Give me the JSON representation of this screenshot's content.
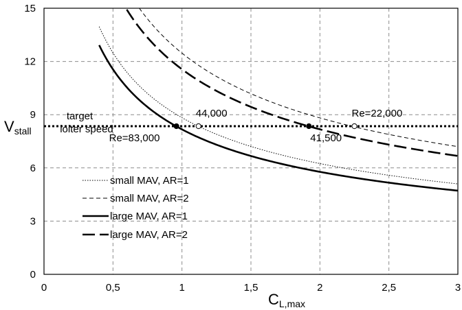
{
  "chart_data": {
    "type": "line",
    "xlabel": {
      "main": "C",
      "sub": "L,max"
    },
    "ylabel": {
      "main": "V",
      "sub": "stall"
    },
    "xlim": [
      0,
      3
    ],
    "ylim": [
      0,
      15
    ],
    "grid": true,
    "legend_position": "bottom-left",
    "x_ticks": [
      {
        "value": 0,
        "label": "0"
      },
      {
        "value": 0.5,
        "label": "0,5"
      },
      {
        "value": 1,
        "label": "1"
      },
      {
        "value": 1.5,
        "label": "1,5"
      },
      {
        "value": 2,
        "label": "2"
      },
      {
        "value": 2.5,
        "label": "2,5"
      },
      {
        "value": 3,
        "label": "3"
      }
    ],
    "y_ticks": [
      {
        "value": 0,
        "label": "0"
      },
      {
        "value": 3,
        "label": "3"
      },
      {
        "value": 6,
        "label": "6"
      },
      {
        "value": 9,
        "label": "9"
      },
      {
        "value": 12,
        "label": "12"
      },
      {
        "value": 15,
        "label": "15"
      }
    ],
    "series": [
      {
        "name": "small MAV, AR=1",
        "style": "dotted",
        "color": "#000000",
        "k": 8.83,
        "x_start": 0.4,
        "x_end": 3
      },
      {
        "name": "small MAV, AR=2",
        "style": "dashed",
        "color": "#000000",
        "k": 12.47,
        "x_start": 0.69,
        "x_end": 3
      },
      {
        "name": "large MAV, AR=1",
        "style": "solid-thick",
        "color": "#000000",
        "k": 8.17,
        "x_start": 0.4,
        "x_end": 3
      },
      {
        "name": "large MAV, AR=2",
        "style": "longdash-thick",
        "color": "#000000",
        "k": 11.56,
        "x_start": 0.6,
        "x_end": 3
      }
    ],
    "reference_line": {
      "y": 8.35,
      "style": "dotted-thick",
      "label_line1": "target",
      "label_line2": "loiter speed"
    },
    "markers": [
      {
        "x": 0.96,
        "y": 8.35,
        "filled": true
      },
      {
        "x": 1.12,
        "y": 8.35,
        "filled": false
      },
      {
        "x": 1.92,
        "y": 8.35,
        "filled": true
      },
      {
        "x": 2.25,
        "y": 8.35,
        "filled": false
      }
    ],
    "annotations": [
      {
        "text": "Re=83,000",
        "x": 0.96,
        "y": 8.35,
        "anchor": "below"
      },
      {
        "text": "44,000",
        "x": 1.12,
        "y": 8.35,
        "anchor": "above"
      },
      {
        "text": "41,500",
        "x": 1.92,
        "y": 8.35,
        "anchor": "below"
      },
      {
        "text": "Re=22,000",
        "x": 2.25,
        "y": 8.35,
        "anchor": "above"
      }
    ]
  }
}
